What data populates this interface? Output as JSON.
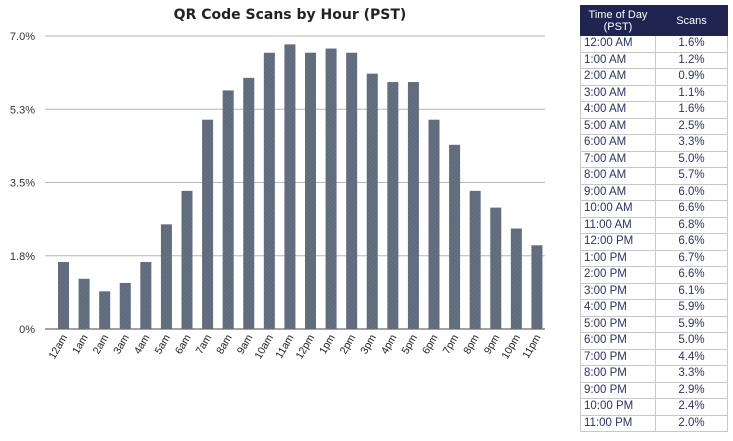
{
  "chart_data": {
    "type": "bar",
    "title": "QR Code Scans by Hour (PST)",
    "categories": [
      "12am",
      "1am",
      "2am",
      "3am",
      "4am",
      "5am",
      "6am",
      "7am",
      "8am",
      "9am",
      "10am",
      "11am",
      "12pm",
      "1pm",
      "2pm",
      "3pm",
      "4pm",
      "5pm",
      "6pm",
      "7pm",
      "8pm",
      "9pm",
      "10pm",
      "11pm"
    ],
    "values": [
      1.6,
      1.2,
      0.9,
      1.1,
      1.6,
      2.5,
      3.3,
      5.0,
      5.7,
      6.0,
      6.6,
      6.8,
      6.6,
      6.7,
      6.6,
      6.1,
      5.9,
      5.9,
      5.0,
      4.4,
      3.3,
      2.9,
      2.4,
      2.0
    ],
    "yticks": [
      0,
      1.75,
      3.5,
      5.25,
      7.0
    ],
    "ytick_labels": [
      "0%",
      "1.8%",
      "3.5%",
      "5.3%",
      "7.0%"
    ],
    "ylim": [
      0,
      7.0
    ],
    "xlabel": "",
    "ylabel": "",
    "bar_color": "#5f6b7c",
    "grid": true
  },
  "table": {
    "headers": [
      "Time of Day (PST)",
      "Scans"
    ],
    "rows": [
      [
        "12:00 AM",
        "1.6%"
      ],
      [
        "1:00 AM",
        "1.2%"
      ],
      [
        "2:00 AM",
        "0.9%"
      ],
      [
        "3:00 AM",
        "1.1%"
      ],
      [
        "4:00 AM",
        "1.6%"
      ],
      [
        "5:00 AM",
        "2.5%"
      ],
      [
        "6:00 AM",
        "3.3%"
      ],
      [
        "7:00 AM",
        "5.0%"
      ],
      [
        "8:00 AM",
        "5.7%"
      ],
      [
        "9:00 AM",
        "6.0%"
      ],
      [
        "10:00 AM",
        "6.6%"
      ],
      [
        "11:00 AM",
        "6.8%"
      ],
      [
        "12:00 PM",
        "6.6%"
      ],
      [
        "1:00 PM",
        "6.7%"
      ],
      [
        "2:00 PM",
        "6.6%"
      ],
      [
        "3:00 PM",
        "6.1%"
      ],
      [
        "4:00 PM",
        "5.9%"
      ],
      [
        "5:00 PM",
        "5.9%"
      ],
      [
        "6:00 PM",
        "5.0%"
      ],
      [
        "7:00 PM",
        "4.4%"
      ],
      [
        "8:00 PM",
        "3.3%"
      ],
      [
        "9:00 PM",
        "2.9%"
      ],
      [
        "10:00 PM",
        "2.4%"
      ],
      [
        "11:00 PM",
        "2.0%"
      ]
    ]
  }
}
